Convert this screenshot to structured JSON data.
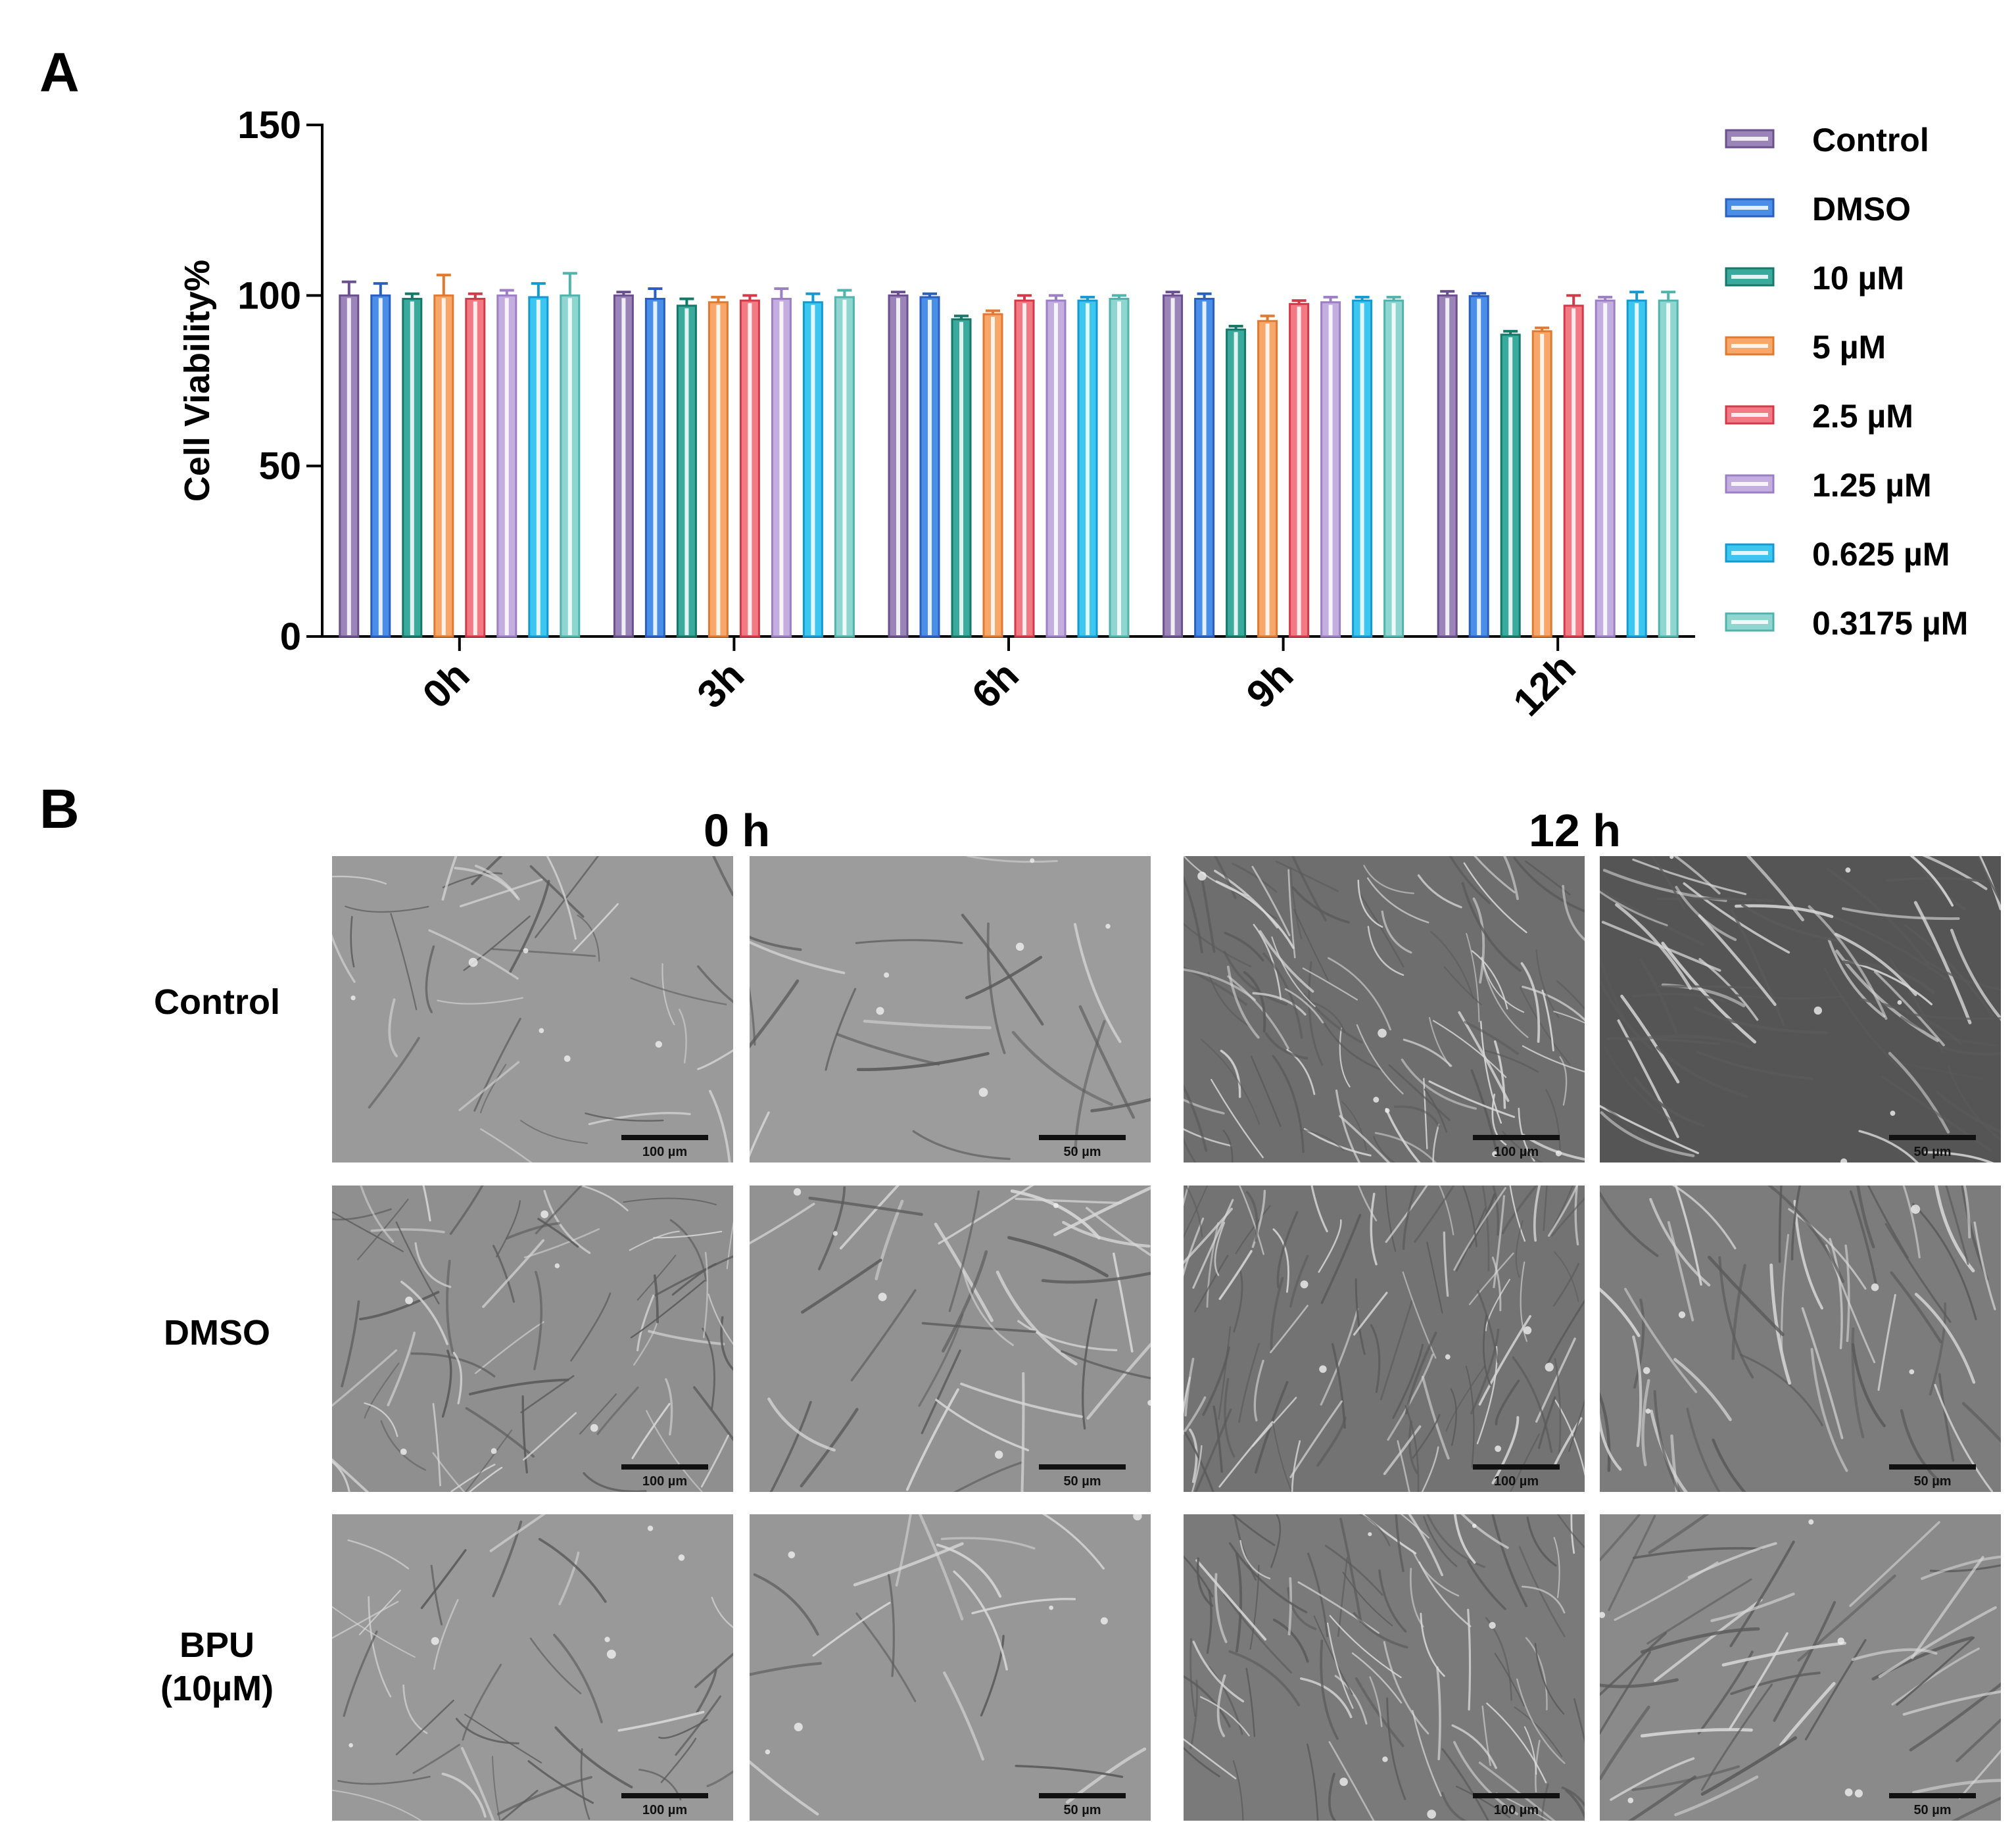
{
  "panel_a": {
    "letter": "A",
    "chart_data": {
      "type": "bar",
      "title": "",
      "xlabel": "",
      "ylabel": "Cell Viability%",
      "ylim": [
        0,
        150
      ],
      "yticks": [
        "0",
        "50",
        "100",
        "150"
      ],
      "categories": [
        "0h",
        "3h",
        "6h",
        "9h",
        "12h"
      ],
      "legend_placement": "right",
      "grid": false,
      "series": [
        {
          "name": "Control",
          "color": "#9b84b8",
          "edge": "#6a508c",
          "values": [
            100,
            100,
            100,
            100,
            100
          ],
          "errors": [
            4,
            1,
            1,
            1,
            1.2
          ]
        },
        {
          "name": "DMSO",
          "color": "#4a8ee8",
          "edge": "#2a5fc0",
          "values": [
            100,
            99,
            99.5,
            99,
            99.8
          ],
          "errors": [
            3.5,
            3,
            1,
            1.5,
            0.8
          ]
        },
        {
          "name": "10 µM",
          "color": "#3aaa9c",
          "edge": "#167868",
          "values": [
            99,
            97,
            93,
            90,
            88.5
          ],
          "errors": [
            1.5,
            2,
            1,
            1,
            1
          ]
        },
        {
          "name": "5 µM",
          "color": "#f7a76a",
          "edge": "#e07a30",
          "values": [
            100,
            98,
            94.5,
            92.5,
            89.5
          ],
          "errors": [
            6,
            1.5,
            1,
            1.5,
            1
          ]
        },
        {
          "name": "2.5 µM",
          "color": "#f27a85",
          "edge": "#d23a4a",
          "values": [
            99,
            98.5,
            98.5,
            97.5,
            97
          ],
          "errors": [
            1.5,
            1.5,
            1.5,
            1,
            3
          ]
        },
        {
          "name": "1.25 µM",
          "color": "#c4addf",
          "edge": "#9c7fc4",
          "values": [
            100,
            99,
            98.5,
            98,
            98.5
          ],
          "errors": [
            1.5,
            3,
            1.5,
            1.5,
            1
          ]
        },
        {
          "name": "0.625 µM",
          "color": "#3cc6f0",
          "edge": "#149ad0",
          "values": [
            99.5,
            98,
            98.5,
            98.5,
            98.5
          ],
          "errors": [
            4,
            2.5,
            1,
            1,
            2.5
          ]
        },
        {
          "name": "0.3175 µM",
          "color": "#8fd6d0",
          "edge": "#50b4ac",
          "values": [
            100,
            99.5,
            99,
            98.5,
            98.5
          ],
          "errors": [
            6.5,
            2,
            1,
            1,
            2.5
          ]
        }
      ]
    }
  },
  "panel_b": {
    "letter": "B",
    "time_headers": [
      "0 h",
      "12 h"
    ],
    "rows": [
      {
        "label": "Control",
        "label2": ""
      },
      {
        "label": "DMSO",
        "label2": ""
      },
      {
        "label": "BPU",
        "label2": "(10µM)"
      }
    ],
    "scale_labels": [
      "100 µm",
      "50 µm",
      "100 µm",
      "50 µm"
    ],
    "image_description": "phase-contrast micrographs of spindle-shaped fibroblast cells"
  }
}
